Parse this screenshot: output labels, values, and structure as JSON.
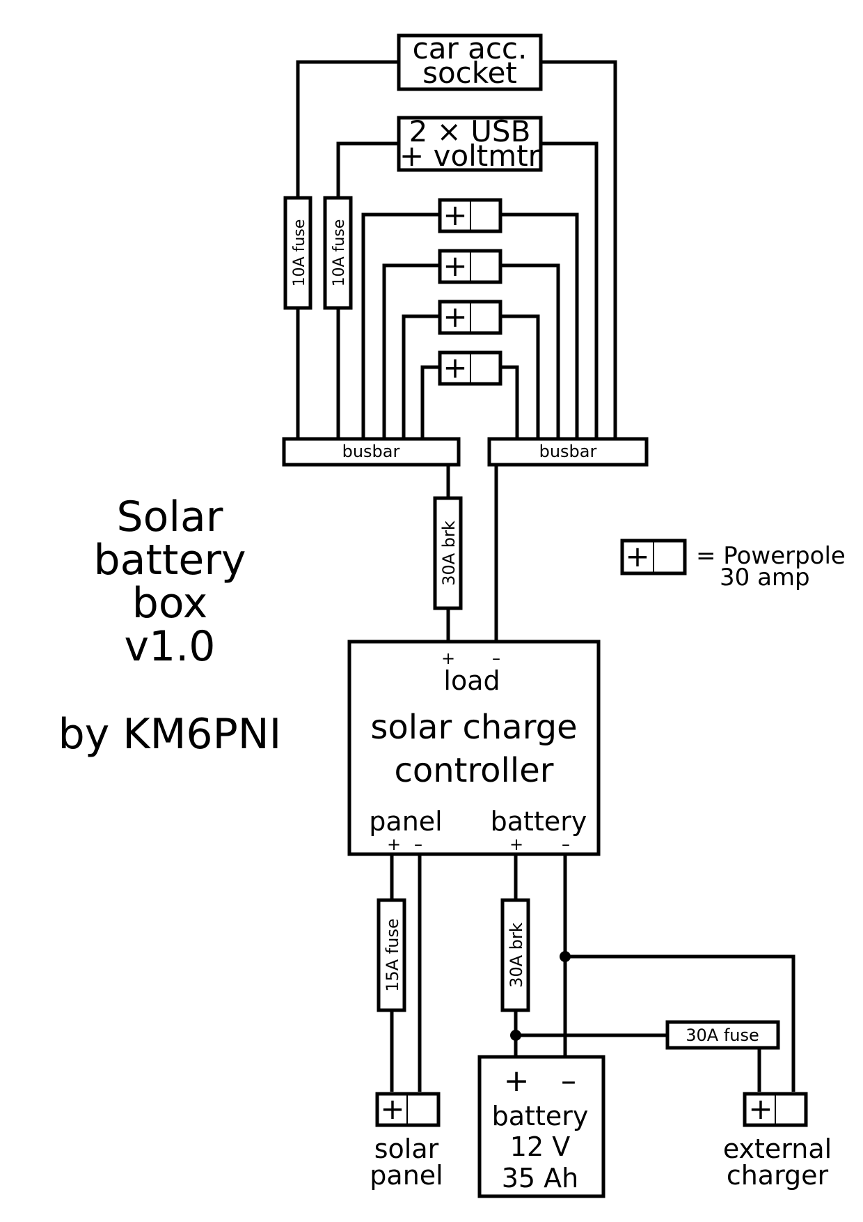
{
  "title": {
    "lines": [
      "Solar",
      "battery",
      "box",
      "v1.0"
    ],
    "author": "by KM6PNI"
  },
  "devices": {
    "car_socket": [
      "car acc.",
      "socket"
    ],
    "usb": [
      "2 × USB",
      "+ voltmtr"
    ]
  },
  "fuses": {
    "fuse_car": "10A fuse",
    "fuse_usb": "10A fuse",
    "breaker_load": "30A brk",
    "fuse_panel": "15A fuse",
    "breaker_battery": "30A brk",
    "fuse_charger": "30A fuse"
  },
  "busbars": {
    "left": "busbar",
    "right": "busbar"
  },
  "powerpole": {
    "plus": "+",
    "legend": [
      "= Powerpole",
      "30 amp"
    ]
  },
  "controller": {
    "load_label": "load",
    "load_plus": "+",
    "load_minus": "–",
    "title": [
      "solar charge",
      "controller"
    ],
    "panel_label": "panel",
    "panel_plus": "+",
    "panel_minus": "–",
    "battery_label": "battery",
    "battery_plus": "+",
    "battery_minus": "–"
  },
  "battery": {
    "plus": "+",
    "minus": "–",
    "lines": [
      "battery",
      "12 V",
      "35 Ah"
    ]
  },
  "connectors": {
    "solar_panel": [
      "solar",
      "panel"
    ],
    "external_charger": [
      "external",
      "charger"
    ]
  }
}
